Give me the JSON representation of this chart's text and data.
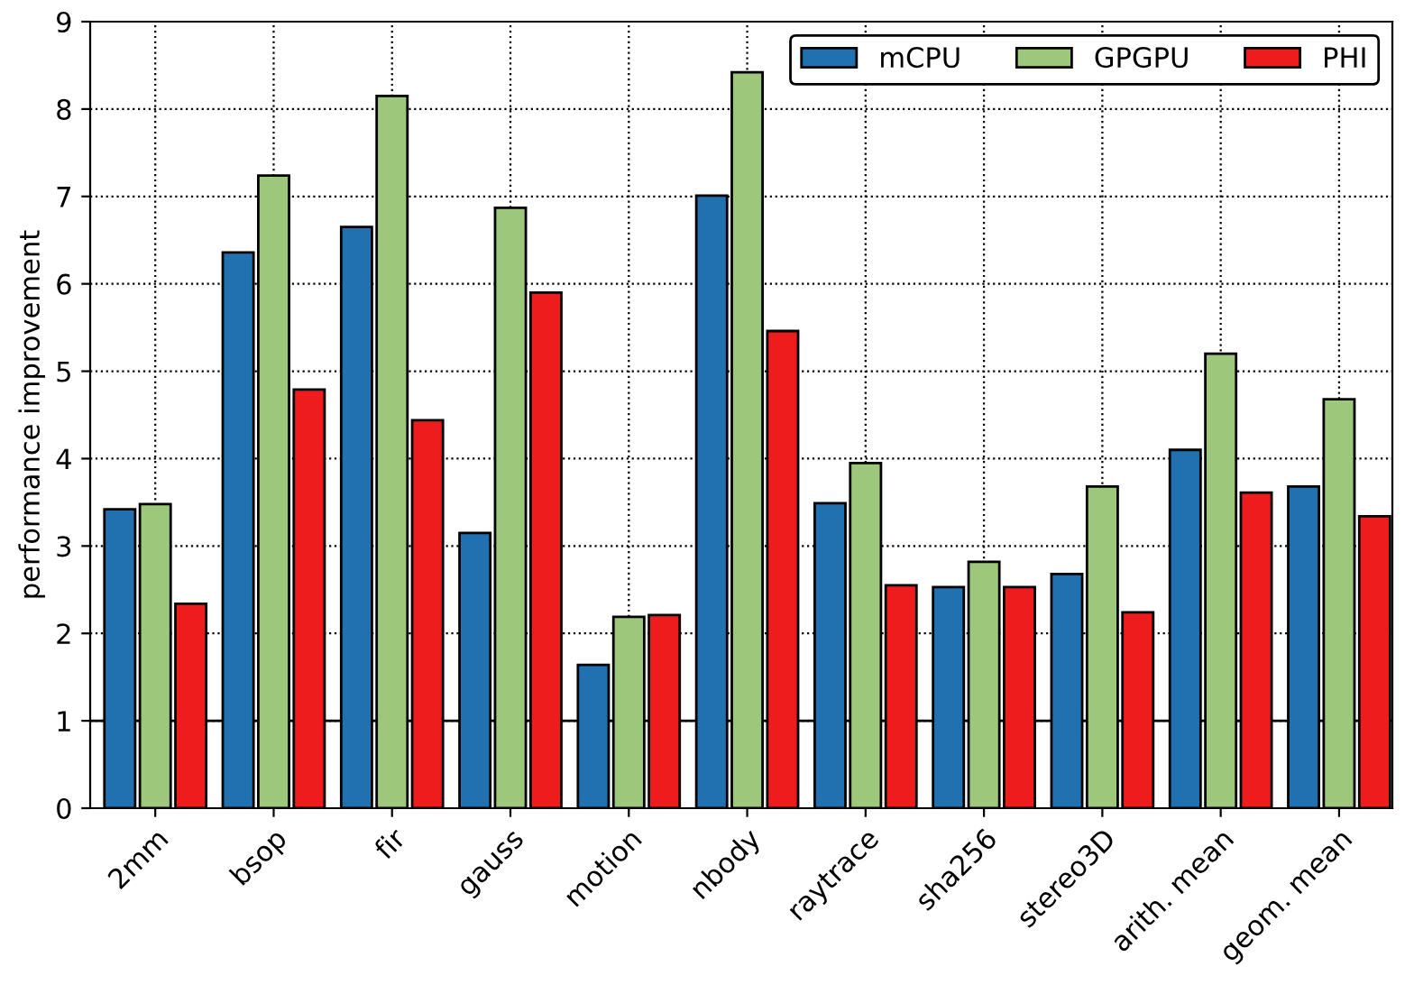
{
  "chart_data": {
    "type": "bar",
    "ylabel": "performance improvement",
    "categories": [
      "2mm",
      "bsop",
      "fir",
      "gauss",
      "motion",
      "nbody",
      "raytrace",
      "sha256",
      "stereo3D",
      "arith. mean",
      "geom. mean"
    ],
    "series": [
      {
        "name": "mCPU",
        "color": "#2171b0",
        "values": [
          3.42,
          6.36,
          6.65,
          3.15,
          1.64,
          7.01,
          3.49,
          2.53,
          2.68,
          4.1,
          3.68
        ]
      },
      {
        "name": "GPGPU",
        "color": "#9dc77a",
        "values": [
          3.48,
          7.24,
          8.15,
          6.87,
          2.19,
          8.42,
          3.95,
          2.82,
          3.68,
          5.2,
          4.68
        ]
      },
      {
        "name": "PHI",
        "color": "#ee1c1c",
        "values": [
          2.34,
          4.79,
          4.44,
          5.9,
          2.21,
          5.46,
          2.55,
          2.53,
          2.24,
          3.61,
          3.34
        ]
      }
    ],
    "ylim": [
      0,
      9
    ],
    "yticks": [
      0,
      1,
      2,
      3,
      4,
      5,
      6,
      7,
      8,
      9
    ],
    "ref_lines": [
      {
        "axis": "y",
        "value": 1,
        "color": "#000000",
        "line_style": "solid"
      }
    ],
    "grid": true,
    "legend": "top right"
  }
}
